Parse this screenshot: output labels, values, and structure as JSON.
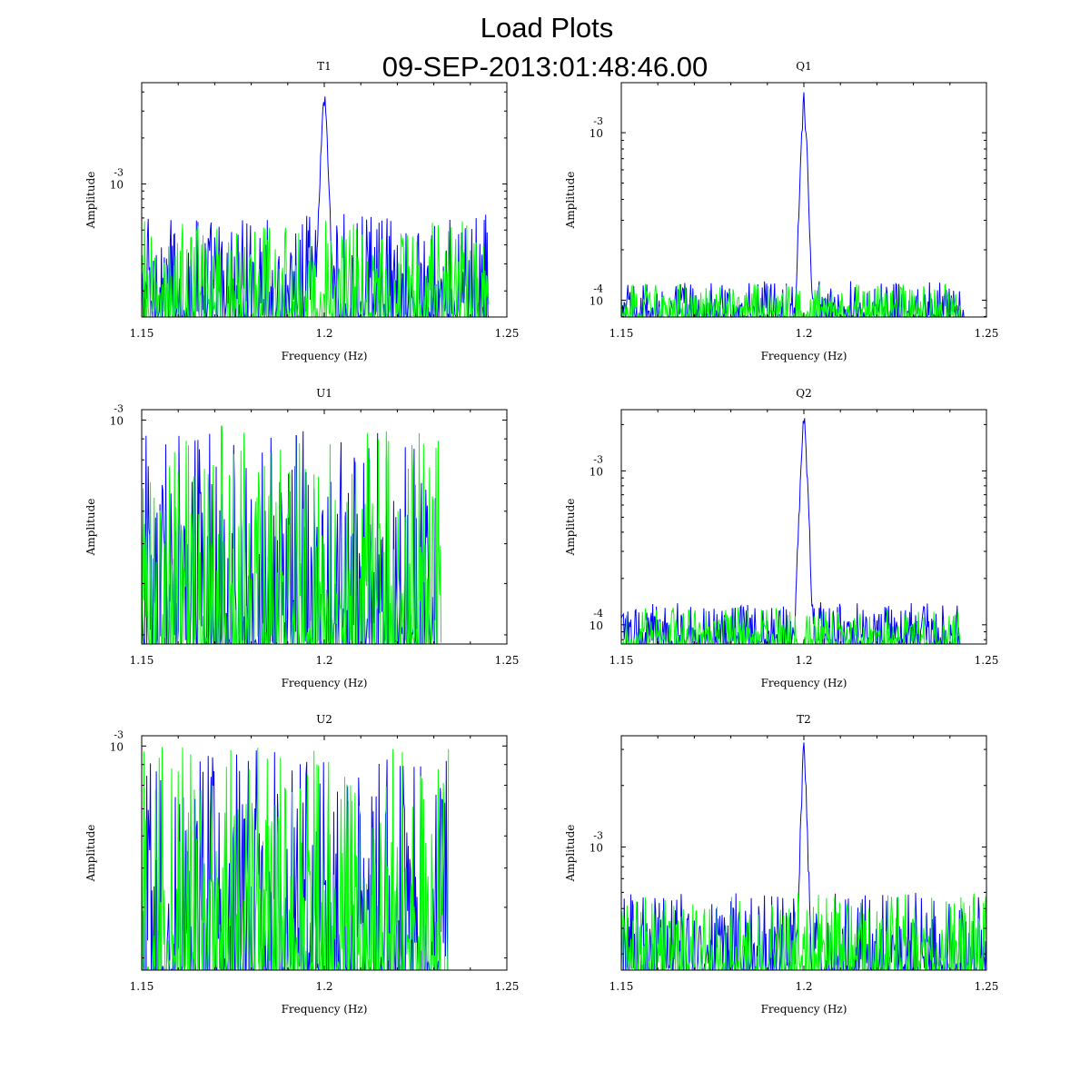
{
  "header": {
    "title": "Load Plots",
    "timestamp": "09-SEP-2013:01:48:46.00"
  },
  "colors": {
    "series_a": "#0000ff",
    "series_b": "#00ff00",
    "axis": "#000000"
  },
  "chart_data": [
    {
      "type": "line",
      "title": "T1",
      "xlabel": "Frequency (Hz)",
      "ylabel": "Amplitude",
      "xlim": [
        1.15,
        1.25
      ],
      "x_ticks": [
        "1.15",
        "1.2",
        "1.25"
      ],
      "y_scale": "log",
      "ylim": [
        0.000135,
        0.0046
      ],
      "y_tick_labels": [
        {
          "value": 0.001,
          "base": "10",
          "exp": "-3"
        }
      ],
      "x_step": 0.0002,
      "series": [
        {
          "name": "blue",
          "color": "#0000ff",
          "peak": {
            "x": 1.2,
            "value": 0.0043
          },
          "noise_level": 0.00026,
          "noise_max": 0.00064,
          "cutoff": 1.245,
          "peak_width": 0.0025
        },
        {
          "name": "green",
          "color": "#00ff00",
          "noise_level": 0.00028,
          "noise_max": 0.00058,
          "cutoff": 1.245
        }
      ]
    },
    {
      "type": "line",
      "title": "Q1",
      "xlabel": "Frequency (Hz)",
      "ylabel": "Amplitude",
      "xlim": [
        1.15,
        1.25
      ],
      "x_ticks": [
        "1.15",
        "1.2",
        "1.25"
      ],
      "y_scale": "log",
      "ylim": [
        7.94e-05,
        0.00199
      ],
      "y_tick_labels": [
        {
          "value": 0.001,
          "base": "10",
          "exp": "-3"
        },
        {
          "value": 0.0001,
          "base": "10",
          "exp": "-4"
        }
      ],
      "x_step": 0.0002,
      "series": [
        {
          "name": "blue",
          "color": "#0000ff",
          "peak": {
            "x": 1.2,
            "value": 0.00185
          },
          "noise_level": 9.5e-05,
          "noise_max": 0.00013,
          "cutoff": 1.244,
          "peak_width": 0.0025
        },
        {
          "name": "green",
          "color": "#00ff00",
          "noise_level": 0.0001,
          "noise_max": 0.000125,
          "cutoff": 1.243
        }
      ]
    },
    {
      "type": "line",
      "title": "U1",
      "xlabel": "Frequency (Hz)",
      "ylabel": "Amplitude",
      "xlim": [
        1.15,
        1.25
      ],
      "x_ticks": [
        "1.15",
        "1.2",
        "1.25"
      ],
      "y_scale": "log",
      "ylim": [
        0.000285,
        0.00106
      ],
      "y_tick_labels": [
        {
          "value": 0.001,
          "base": "10",
          "exp": "-3"
        }
      ],
      "x_step": 0.0002,
      "series": [
        {
          "name": "blue",
          "color": "#0000ff",
          "noise_level": 0.00048,
          "noise_max": 0.00094,
          "cutoff": 1.231
        },
        {
          "name": "green",
          "color": "#00ff00",
          "noise_level": 0.0005,
          "noise_max": 0.00098,
          "cutoff": 1.232
        }
      ]
    },
    {
      "type": "line",
      "title": "Q2",
      "xlabel": "Frequency (Hz)",
      "ylabel": "Amplitude",
      "xlim": [
        1.15,
        1.25
      ],
      "x_ticks": [
        "1.15",
        "1.2",
        "1.25"
      ],
      "y_scale": "log",
      "ylim": [
        7.5e-05,
        0.0025
      ],
      "y_tick_labels": [
        {
          "value": 0.001,
          "base": "10",
          "exp": "-3"
        },
        {
          "value": 0.0001,
          "base": "10",
          "exp": "-4"
        }
      ],
      "x_step": 0.0002,
      "series": [
        {
          "name": "blue",
          "color": "#0000ff",
          "peak": {
            "x": 1.2,
            "value": 0.0025
          },
          "noise_level": 9.5e-05,
          "noise_max": 0.00014,
          "cutoff": 1.243,
          "peak_width": 0.0025
        },
        {
          "name": "green",
          "color": "#00ff00",
          "noise_level": 0.0001,
          "noise_max": 0.00013,
          "cutoff": 1.243
        }
      ]
    },
    {
      "type": "line",
      "title": "U2",
      "xlabel": "Frequency (Hz)",
      "ylabel": "Amplitude",
      "xlim": [
        1.15,
        1.25
      ],
      "x_ticks": [
        "1.15",
        "1.2",
        "1.25"
      ],
      "y_scale": "log",
      "ylim": [
        0.00028,
        0.00106
      ],
      "y_tick_labels": [
        {
          "value": 0.001,
          "base": "10",
          "exp": "-3"
        }
      ],
      "x_step": 0.0002,
      "series": [
        {
          "name": "blue",
          "color": "#0000ff",
          "noise_level": 0.00048,
          "noise_max": 0.00098,
          "cutoff": 1.234
        },
        {
          "name": "green",
          "color": "#00ff00",
          "noise_level": 0.0005,
          "noise_max": 0.001,
          "cutoff": 1.234
        }
      ]
    },
    {
      "type": "line",
      "title": "T2",
      "xlabel": "Frequency (Hz)",
      "ylabel": "Amplitude",
      "xlim": [
        1.15,
        1.25
      ],
      "x_ticks": [
        "1.15",
        "1.2",
        "1.25"
      ],
      "y_scale": "log",
      "ylim": [
        0.00025,
        0.0035
      ],
      "y_tick_labels": [
        {
          "value": 0.001,
          "base": "10",
          "exp": "-3"
        }
      ],
      "x_step": 0.0002,
      "series": [
        {
          "name": "blue",
          "color": "#0000ff",
          "peak": {
            "x": 1.2,
            "value": 0.0034
          },
          "noise_level": 0.0004,
          "noise_max": 0.0006,
          "cutoff": 1.25,
          "peak_width": 0.0025
        },
        {
          "name": "green",
          "color": "#00ff00",
          "noise_level": 0.00042,
          "noise_max": 0.0006,
          "cutoff": 1.25
        }
      ]
    }
  ]
}
